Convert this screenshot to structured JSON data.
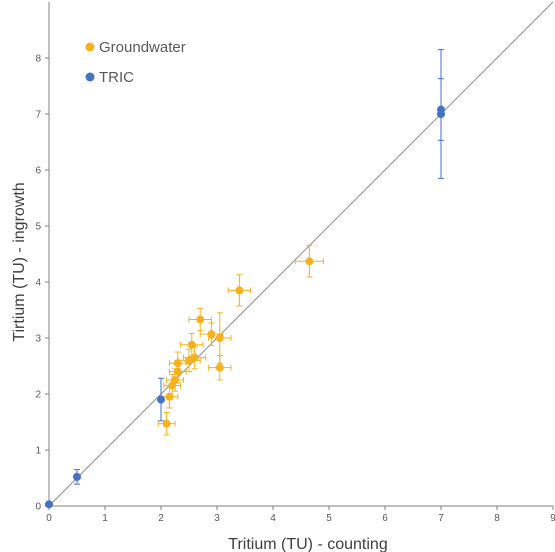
{
  "chart_data": {
    "type": "scatter",
    "xlabel": "Tritium (TU) - counting",
    "ylabel": "Tirtium (TU) - ingrowth",
    "xlim": [
      0,
      9
    ],
    "ylim": [
      0,
      9
    ],
    "xticks": [
      "0",
      "1",
      "2",
      "3",
      "4",
      "5",
      "6",
      "7",
      "8",
      "9"
    ],
    "yticks": [
      "0",
      "1",
      "2",
      "3",
      "4",
      "5",
      "6",
      "7",
      "8"
    ],
    "grid": false,
    "legend": "top-left",
    "reference_line": "1:1",
    "series": [
      {
        "name": "Groundwater",
        "color": "#F5B120",
        "points": [
          {
            "x": 2.1,
            "y": 1.47,
            "xerr": 0.15,
            "yerr": 0.2
          },
          {
            "x": 2.15,
            "y": 1.95,
            "xerr": 0.15,
            "yerr": 0.2
          },
          {
            "x": 2.2,
            "y": 2.15,
            "xerr": 0.15,
            "yerr": 0.2
          },
          {
            "x": 2.25,
            "y": 2.25,
            "xerr": 0.15,
            "yerr": 0.2
          },
          {
            "x": 2.3,
            "y": 2.4,
            "xerr": 0.15,
            "yerr": 0.2
          },
          {
            "x": 2.3,
            "y": 2.55,
            "xerr": 0.15,
            "yerr": 0.2
          },
          {
            "x": 2.5,
            "y": 2.6,
            "xerr": 0.2,
            "yerr": 0.2
          },
          {
            "x": 2.6,
            "y": 2.65,
            "xerr": 0.2,
            "yerr": 0.2
          },
          {
            "x": 2.55,
            "y": 2.88,
            "xerr": 0.2,
            "yerr": 0.2
          },
          {
            "x": 2.7,
            "y": 3.33,
            "xerr": 0.2,
            "yerr": 0.2
          },
          {
            "x": 2.9,
            "y": 3.07,
            "xerr": 0.2,
            "yerr": 0.2
          },
          {
            "x": 3.05,
            "y": 3.0,
            "xerr": 0.2,
            "yerr": 0.45
          },
          {
            "x": 3.05,
            "y": 2.47,
            "xerr": 0.2,
            "yerr": 0.22
          },
          {
            "x": 3.4,
            "y": 3.85,
            "xerr": 0.2,
            "yerr": 0.28
          },
          {
            "x": 4.65,
            "y": 4.37,
            "xerr": 0.25,
            "yerr": 0.28
          }
        ]
      },
      {
        "name": "TRIC",
        "color": "#4472C4",
        "points": [
          {
            "x": 0.0,
            "y": 0.03,
            "xerr": 0,
            "yerr": 0
          },
          {
            "x": 0.5,
            "y": 0.52,
            "xerr": 0,
            "yerr": 0.13
          },
          {
            "x": 2.0,
            "y": 1.9,
            "xerr": 0,
            "yerr": 0.38
          },
          {
            "x": 7.0,
            "y": 7.0,
            "xerr": 0,
            "yerr": 1.15
          },
          {
            "x": 7.0,
            "y": 7.08,
            "xerr": 0,
            "yerr": 0.55
          }
        ]
      }
    ]
  }
}
